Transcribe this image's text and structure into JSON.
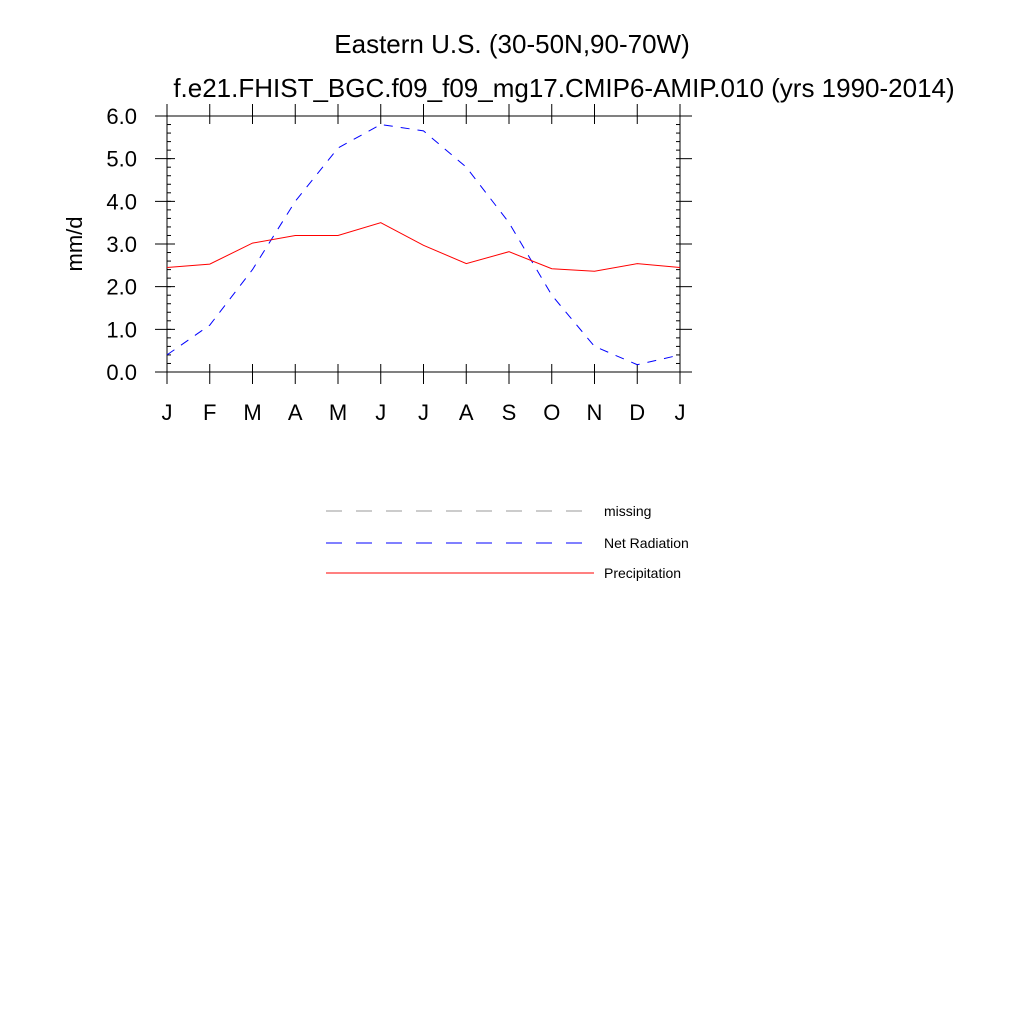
{
  "colors": {
    "precipitation": "#ff0000",
    "net_radiation": "#0000ff",
    "missing": "#999999"
  },
  "chart_data": {
    "type": "line",
    "title": "Eastern U.S. (30-50N,90-70W)",
    "subtitle": "f.e21.FHIST_BGC.f09_f09_mg17.CMIP6-AMIP.010 (yrs 1990-2014)",
    "xlabel": "",
    "ylabel": "mm/d",
    "categories": [
      "J",
      "F",
      "M",
      "A",
      "M",
      "J",
      "J",
      "A",
      "S",
      "O",
      "N",
      "D",
      "J"
    ],
    "ylim": [
      0,
      6
    ],
    "yticks": [
      "0.0",
      "1.0",
      "2.0",
      "3.0",
      "4.0",
      "5.0",
      "6.0"
    ],
    "grid": false,
    "legend_position": "below",
    "series": [
      {
        "name": "Net Radiation",
        "style": "dashed",
        "color": "#0000ff",
        "values": [
          0.4,
          1.1,
          2.4,
          4.0,
          5.25,
          5.8,
          5.65,
          4.8,
          3.5,
          1.8,
          0.6,
          0.17,
          0.4
        ]
      },
      {
        "name": "Precipitation",
        "style": "solid",
        "color": "#ff0000",
        "values": [
          2.45,
          2.53,
          3.02,
          3.2,
          3.2,
          3.5,
          2.97,
          2.54,
          2.82,
          2.42,
          2.36,
          2.54,
          2.45
        ]
      }
    ],
    "legend": [
      {
        "label": "missing",
        "style": "dashed",
        "color": "#999999"
      },
      {
        "label": "Net Radiation",
        "style": "dashed",
        "color": "#0000ff"
      },
      {
        "label": "Precipitation",
        "style": "solid",
        "color": "#ff0000"
      }
    ]
  }
}
